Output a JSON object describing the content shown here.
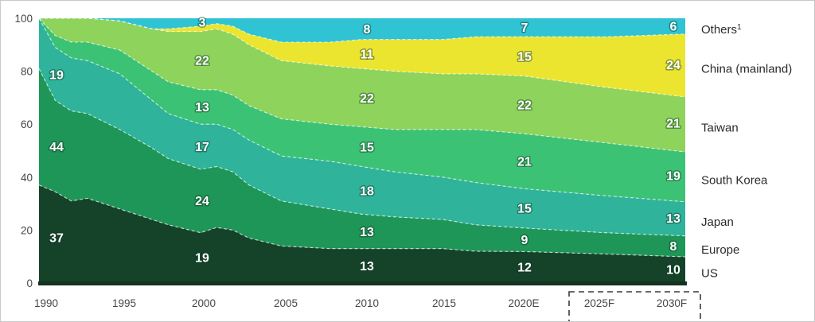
{
  "chart_data": {
    "type": "area",
    "stacked": true,
    "units": "% share (stacked to 100)",
    "title": "",
    "xlabel": "",
    "ylabel": "",
    "ylim": [
      0,
      100
    ],
    "y_ticks": [
      0,
      20,
      40,
      60,
      80,
      100
    ],
    "x_tick_labels": [
      "1990",
      "1995",
      "2000",
      "2005",
      "2010",
      "2015",
      "2020E",
      "2025F",
      "2030F"
    ],
    "x_tick_years": [
      1990,
      1995,
      2000,
      2005,
      2010,
      2015,
      2020,
      2025,
      2030
    ],
    "legend_position": "right",
    "legend": [
      "Others¹",
      "China (mainland)",
      "Taiwan",
      "South Korea",
      "Japan",
      "Europe",
      "US"
    ],
    "forecast_years": [
      "2025F",
      "2030F"
    ],
    "x": [
      1990,
      1991,
      1992,
      1993,
      1995,
      1997,
      1998,
      2000,
      2001,
      2002,
      2003,
      2005,
      2008,
      2010,
      2012,
      2015,
      2017,
      2020,
      2025,
      2030
    ],
    "series": [
      {
        "name": "US",
        "color": "#15432a",
        "values": [
          37,
          34.5,
          31,
          32,
          28,
          24,
          22,
          19,
          21,
          20,
          17,
          14,
          13,
          13,
          13,
          13,
          12,
          12,
          11,
          10
        ],
        "labels": {
          "1990": "37",
          "2000": "19",
          "2010": "13",
          "2020": "12",
          "2030": "10"
        }
      },
      {
        "name": "Europe",
        "color": "#1e9657",
        "values": [
          44,
          34.5,
          34,
          32,
          30,
          27,
          25,
          24,
          23,
          22,
          20,
          17,
          15,
          13,
          12,
          11,
          10,
          9,
          8,
          8
        ],
        "labels": {
          "1990": "44",
          "2000": "24",
          "2010": "13",
          "2020": "9",
          "2030": "8"
        }
      },
      {
        "name": "Japan",
        "color": "#2fb39b",
        "values": [
          19,
          20,
          20,
          20,
          21,
          18,
          17,
          17,
          16,
          16,
          17,
          17,
          18,
          18,
          17,
          16,
          16,
          15,
          14,
          13
        ],
        "labels": {
          "1990": "19",
          "2000": "17",
          "2010": "18",
          "2020": "15",
          "2030": "13"
        }
      },
      {
        "name": "South Korea",
        "color": "#3cc274",
        "values": [
          0,
          4.5,
          6,
          7,
          9,
          11,
          12,
          13,
          13,
          13,
          13,
          14,
          14,
          15,
          16,
          18,
          20,
          21,
          20,
          19
        ],
        "labels": {
          "2000": "13",
          "2010": "15",
          "2020": "21",
          "2030": "19"
        }
      },
      {
        "name": "Taiwan",
        "color": "#8ed35c",
        "values": [
          0,
          6.5,
          9,
          9,
          11,
          16,
          19,
          22,
          23,
          23,
          23,
          22,
          22,
          22,
          22,
          21,
          21,
          22,
          21,
          21
        ],
        "labels": {
          "2000": "22",
          "2010": "22",
          "2020": "22",
          "2030": "21"
        }
      },
      {
        "name": "China (mainland)",
        "color": "#ece52f",
        "values": [
          0,
          0,
          0,
          0,
          0,
          0,
          1,
          2,
          2,
          3,
          4,
          7,
          9,
          11,
          12,
          13,
          14,
          15,
          19,
          24
        ],
        "labels": {
          "2010": "11",
          "2020": "15",
          "2030": "24"
        }
      },
      {
        "name": "Others",
        "sup": "1",
        "color": "#2fc3d4",
        "values": [
          0,
          0,
          0,
          0,
          1,
          4,
          4,
          3,
          2,
          3,
          6,
          9,
          9,
          8,
          8,
          8,
          7,
          7,
          7,
          6
        ],
        "labels": {
          "2000": "3",
          "2010": "8",
          "2020": "7",
          "2030": "6"
        }
      }
    ],
    "value_label_columns": [
      {
        "year": 1990,
        "x": 70
      },
      {
        "year": 2000,
        "x": 253
      },
      {
        "year": 2010,
        "x": 460
      },
      {
        "year": 2020,
        "x": 658
      },
      {
        "year": 2030,
        "x": 845
      }
    ],
    "style": {
      "band_boundary_color": "rgba(255,255,255,0.72)",
      "baseline_color": "#14321f",
      "forecast_box_color": "#3a3a3a",
      "axis_text_color": "#474747",
      "legend_text_color": "#2b2b2b"
    }
  }
}
